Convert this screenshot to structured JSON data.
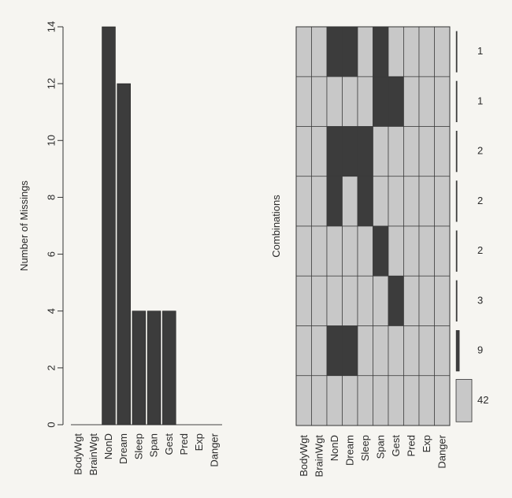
{
  "chart_data": [
    {
      "type": "bar",
      "ylabel": "Number of Missings",
      "xlabel": "",
      "title": "",
      "ylim": [
        0,
        14
      ],
      "yticks": [
        0,
        2,
        4,
        6,
        8,
        10,
        12,
        14
      ],
      "categories": [
        "BodyWgt",
        "BrainWgt",
        "NonD",
        "Dream",
        "Sleep",
        "Span",
        "Gest",
        "Pred",
        "Exp",
        "Danger"
      ],
      "values": [
        0,
        0,
        14,
        12,
        4,
        4,
        4,
        0,
        0,
        0
      ],
      "bar_color": "#3c3c3c"
    },
    {
      "type": "heatmap",
      "ylabel": "Combinations",
      "columns": [
        "BodyWgt",
        "BrainWgt",
        "NonD",
        "Dream",
        "Sleep",
        "Span",
        "Gest",
        "Pred",
        "Exp",
        "Danger"
      ],
      "combinations": [
        {
          "missing": [
            0,
            0,
            1,
            1,
            0,
            1,
            0,
            0,
            0,
            0
          ],
          "count": 1
        },
        {
          "missing": [
            0,
            0,
            0,
            0,
            0,
            1,
            1,
            0,
            0,
            0
          ],
          "count": 1
        },
        {
          "missing": [
            0,
            0,
            1,
            1,
            1,
            0,
            0,
            0,
            0,
            0
          ],
          "count": 2
        },
        {
          "missing": [
            0,
            0,
            1,
            0,
            1,
            0,
            0,
            0,
            0,
            0
          ],
          "count": 2
        },
        {
          "missing": [
            0,
            0,
            0,
            0,
            0,
            1,
            0,
            0,
            0,
            0
          ],
          "count": 2
        },
        {
          "missing": [
            0,
            0,
            0,
            0,
            0,
            0,
            1,
            0,
            0,
            0
          ],
          "count": 3
        },
        {
          "missing": [
            0,
            0,
            1,
            1,
            0,
            0,
            0,
            0,
            0,
            0
          ],
          "count": 9
        },
        {
          "missing": [
            0,
            0,
            0,
            0,
            0,
            0,
            0,
            0,
            0,
            0
          ],
          "count": 42
        }
      ],
      "missing_color": "#3c3c3c",
      "observed_color": "#c8c8c8"
    }
  ]
}
